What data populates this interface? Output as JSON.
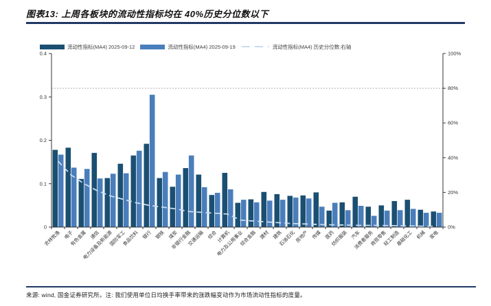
{
  "header": {
    "title": "图表13: 上周各板块的流动性指标均在 40%历史分位数以下"
  },
  "legend": {
    "items": [
      {
        "label": "流动性指标(MA4) 2025-09-12",
        "type": "bar",
        "color": "#1b4f72"
      },
      {
        "label": "流动性指标(MA4) 2025-09-19",
        "type": "bar",
        "color": "#4a7ebb"
      },
      {
        "label": "流动性指标(MA4) 历史分位数:右轴",
        "type": "dashed-line",
        "color": "#c9dcf0"
      }
    ]
  },
  "chart_data": {
    "type": "bar",
    "title": "上周各板块的流动性指标均在 40%历史分位数以下",
    "categories": [
      "农林牧渔",
      "电子",
      "有色金属",
      "通信",
      "电力设备及新能源",
      "国防军工",
      "食品饮料",
      "银行",
      "钢铁",
      "煤炭",
      "非银行金融",
      "交通运输",
      "综合",
      "计算机",
      "电力及公用事业",
      "综合金融",
      "建材",
      "建筑",
      "石油石化",
      "房地产",
      "传媒",
      "医药",
      "纺织服装",
      "汽车",
      "消费者服务",
      "商贸零售",
      "轻工制造",
      "基础化工",
      "机械",
      "家电"
    ],
    "series": [
      {
        "name": "流动性指标(MA4) 2025-09-12",
        "type": "bar",
        "axis": "left",
        "color": "#1b4f72",
        "values": [
          0.178,
          0.183,
          0.111,
          0.171,
          0.113,
          0.146,
          0.165,
          0.192,
          0.113,
          0.093,
          0.136,
          0.121,
          0.074,
          0.125,
          0.056,
          0.064,
          0.081,
          0.076,
          0.072,
          0.073,
          0.08,
          0.038,
          0.057,
          0.07,
          0.047,
          0.05,
          0.06,
          0.063,
          0.04,
          0.036
        ]
      },
      {
        "name": "流动性指标(MA4) 2025-09-19",
        "type": "bar",
        "axis": "left",
        "color": "#4a7ebb",
        "values": [
          0.167,
          0.137,
          0.134,
          0.112,
          0.123,
          0.124,
          0.176,
          0.305,
          0.127,
          0.121,
          0.165,
          0.092,
          0.079,
          0.087,
          0.063,
          0.057,
          0.061,
          0.063,
          0.068,
          0.066,
          0.047,
          0.056,
          0.039,
          0.049,
          0.026,
          0.038,
          0.039,
          0.042,
          0.033,
          0.033
        ]
      },
      {
        "name": "流动性指标(MA4) 历史分位数:右轴",
        "type": "line",
        "axis": "right",
        "color": "#c9dcf0",
        "values_pct": [
          38,
          30,
          25,
          21,
          18,
          16,
          14,
          12.5,
          11.5,
          10.5,
          9,
          8.5,
          8,
          7.5,
          4,
          3.5,
          3,
          2.5,
          2,
          1.8,
          1.5,
          1.3,
          1.2,
          1,
          1,
          0.9,
          0.8,
          0.7,
          0.5,
          0.4
        ]
      }
    ],
    "left_axis": {
      "min": 0,
      "max": 0.4,
      "tick_labels": [
        "0",
        "0.1",
        "0.2",
        "0.3",
        "0.4"
      ]
    },
    "right_axis": {
      "min_pct": 0,
      "max_pct": 100,
      "tick_labels": [
        "0%",
        "20%",
        "40%",
        "60%",
        "80%",
        "100%"
      ]
    },
    "reference_gridline": {
      "axis": "right",
      "value_pct": 80,
      "style": "dotted-gray"
    },
    "legend_position": "top",
    "grid": "off"
  },
  "footer": {
    "note": "来源: wind, 国金证券研究所。注: 我们使用单位日均换手率带来的涨跌幅变动作为市场流动性指标的度量。"
  },
  "colors": {
    "accent_rule": "#1f3864",
    "axis": "#333333",
    "gridline": "#b0b0b0",
    "tick_text": "#333333"
  }
}
